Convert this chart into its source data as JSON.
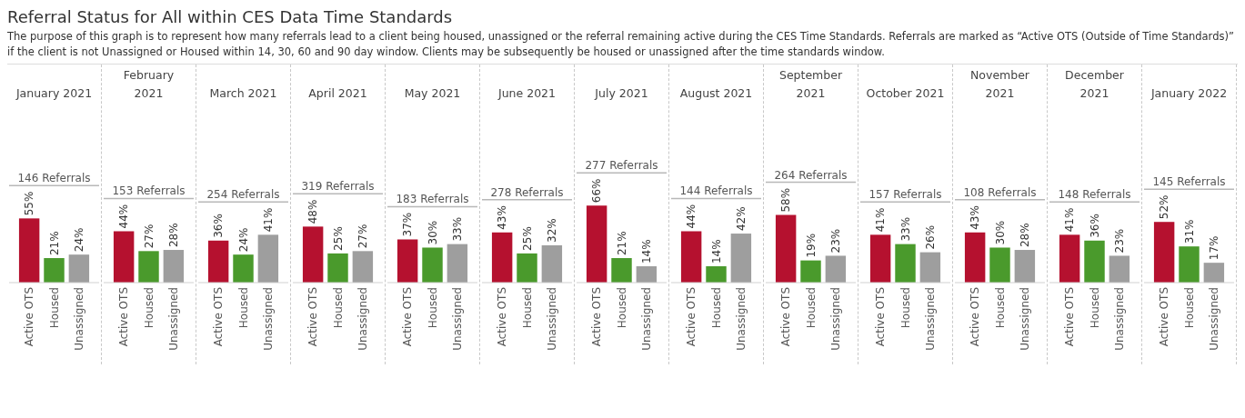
{
  "chart_data": [
    {
      "type": "other",
      "title": "Referral Status for All within CES Data Time Standards",
      "subtitle": "The purpose of this graph is to represent how many referrals lead to a client being housed, unassigned or the referral remaining active during the CES Time Standards. Referrals are marked as “Active OTS (Outside of Time Standards)” if the client is not Unassigned or Housed within 14, 30, 60 and 90 day window. Clients may be subsequently be housed or unassigned after the time standards window."
    },
    {
      "type": "bar",
      "title": "January 2021",
      "categories": [
        "Active OTS",
        "Housed",
        "Unassigned"
      ],
      "values": [
        55,
        21,
        24
      ],
      "value_labels": [
        "55%",
        "21%",
        "24%"
      ],
      "colors": [
        "#b5112f",
        "#4a9a2c",
        "#9e9e9e"
      ],
      "annotations": [
        "146 Referrals"
      ],
      "tick_labels": "x"
    },
    {
      "type": "bar",
      "title": "February 2021",
      "categories": [
        "Active OTS",
        "Housed",
        "Unassigned"
      ],
      "values": [
        44,
        27,
        28
      ],
      "value_labels": [
        "44%",
        "27%",
        "28%"
      ],
      "colors": [
        "#b5112f",
        "#4a9a2c",
        "#9e9e9e"
      ],
      "annotations": [
        "153 Referrals"
      ],
      "tick_labels": "x"
    },
    {
      "type": "bar",
      "title": "March 2021",
      "categories": [
        "Active OTS",
        "Housed",
        "Unassigned"
      ],
      "values": [
        36,
        24,
        41
      ],
      "value_labels": [
        "36%",
        "24%",
        "41%"
      ],
      "colors": [
        "#b5112f",
        "#4a9a2c",
        "#9e9e9e"
      ],
      "annotations": [
        "254 Referrals"
      ],
      "tick_labels": "x"
    },
    {
      "type": "bar",
      "title": "April 2021",
      "categories": [
        "Active OTS",
        "Housed",
        "Unassigned"
      ],
      "values": [
        48,
        25,
        27
      ],
      "value_labels": [
        "48%",
        "25%",
        "27%"
      ],
      "colors": [
        "#b5112f",
        "#4a9a2c",
        "#9e9e9e"
      ],
      "annotations": [
        "319 Referrals"
      ],
      "tick_labels": "x"
    },
    {
      "type": "bar",
      "title": "May 2021",
      "categories": [
        "Active OTS",
        "Housed",
        "Unassigned"
      ],
      "values": [
        37,
        30,
        33
      ],
      "value_labels": [
        "37%",
        "30%",
        "33%"
      ],
      "colors": [
        "#b5112f",
        "#4a9a2c",
        "#9e9e9e"
      ],
      "annotations": [
        "183 Referrals"
      ],
      "tick_labels": "x"
    },
    {
      "type": "bar",
      "title": "June 2021",
      "categories": [
        "Active OTS",
        "Housed",
        "Unassigned"
      ],
      "values": [
        43,
        25,
        32
      ],
      "value_labels": [
        "43%",
        "25%",
        "32%"
      ],
      "colors": [
        "#b5112f",
        "#4a9a2c",
        "#9e9e9e"
      ],
      "annotations": [
        "278 Referrals"
      ],
      "tick_labels": "x"
    },
    {
      "type": "bar",
      "title": "July 2021",
      "categories": [
        "Active OTS",
        "Housed",
        "Unassigned"
      ],
      "values": [
        66,
        21,
        14
      ],
      "value_labels": [
        "66%",
        "21%",
        "14%"
      ],
      "colors": [
        "#b5112f",
        "#4a9a2c",
        "#9e9e9e"
      ],
      "annotations": [
        "277 Referrals"
      ],
      "tick_labels": "x"
    },
    {
      "type": "bar",
      "title": "August 2021",
      "categories": [
        "Active OTS",
        "Housed",
        "Unassigned"
      ],
      "values": [
        44,
        14,
        42
      ],
      "value_labels": [
        "44%",
        "14%",
        "42%"
      ],
      "colors": [
        "#b5112f",
        "#4a9a2c",
        "#9e9e9e"
      ],
      "annotations": [
        "144 Referrals"
      ],
      "tick_labels": "x"
    },
    {
      "type": "bar",
      "title": "September 2021",
      "categories": [
        "Active OTS",
        "Housed",
        "Unassigned"
      ],
      "values": [
        58,
        19,
        23
      ],
      "value_labels": [
        "58%",
        "19%",
        "23%"
      ],
      "colors": [
        "#b5112f",
        "#4a9a2c",
        "#9e9e9e"
      ],
      "annotations": [
        "264 Referrals"
      ],
      "tick_labels": "x"
    },
    {
      "type": "bar",
      "title": "October 2021",
      "categories": [
        "Active OTS",
        "Housed",
        "Unassigned"
      ],
      "values": [
        41,
        33,
        26
      ],
      "value_labels": [
        "41%",
        "33%",
        "26%"
      ],
      "colors": [
        "#b5112f",
        "#4a9a2c",
        "#9e9e9e"
      ],
      "annotations": [
        "157 Referrals"
      ],
      "tick_labels": "x"
    },
    {
      "type": "bar",
      "title": "November 2021",
      "categories": [
        "Active OTS",
        "Housed",
        "Unassigned"
      ],
      "values": [
        43,
        30,
        28
      ],
      "value_labels": [
        "43%",
        "30%",
        "28%"
      ],
      "colors": [
        "#b5112f",
        "#4a9a2c",
        "#9e9e9e"
      ],
      "annotations": [
        "108 Referrals"
      ],
      "tick_labels": "x"
    },
    {
      "type": "bar",
      "title": "December 2021",
      "categories": [
        "Active OTS",
        "Housed",
        "Unassigned"
      ],
      "values": [
        41,
        36,
        23
      ],
      "value_labels": [
        "41%",
        "36%",
        "23%"
      ],
      "colors": [
        "#b5112f",
        "#4a9a2c",
        "#9e9e9e"
      ],
      "annotations": [
        "148 Referrals"
      ],
      "tick_labels": "x"
    },
    {
      "type": "bar",
      "title": "January 2022",
      "categories": [
        "Active OTS",
        "Housed",
        "Unassigned"
      ],
      "values": [
        52,
        31,
        17
      ],
      "value_labels": [
        "52%",
        "31%",
        "17%"
      ],
      "colors": [
        "#b5112f",
        "#4a9a2c",
        "#9e9e9e"
      ],
      "annotations": [
        "145 Referrals"
      ],
      "tick_labels": "x"
    }
  ]
}
